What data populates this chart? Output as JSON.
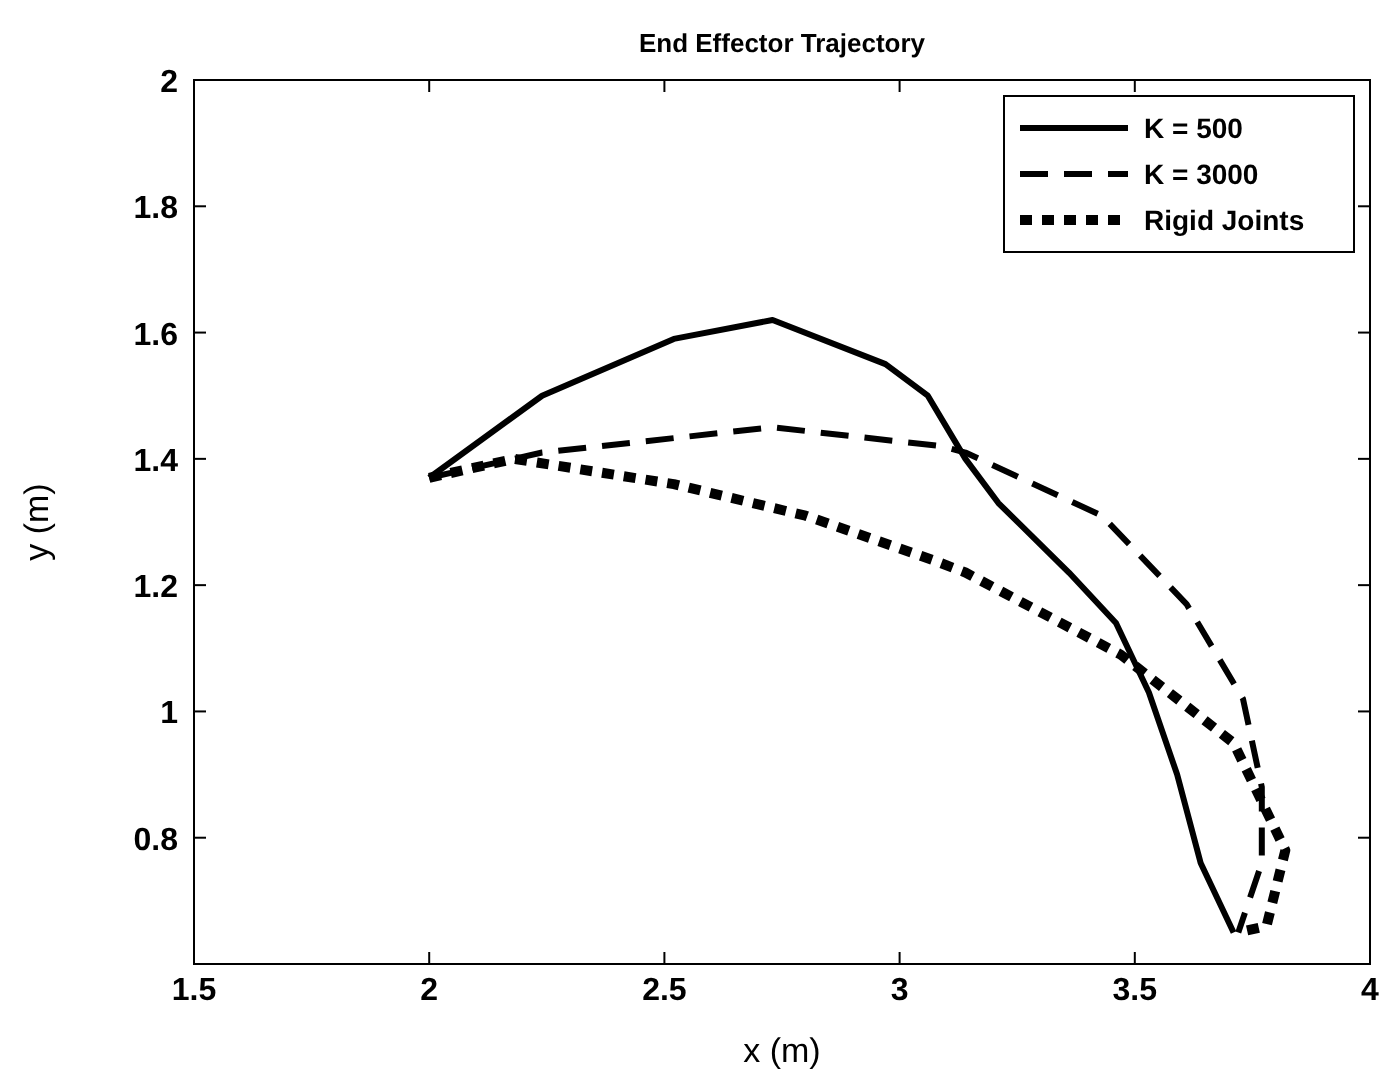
{
  "chart_data": {
    "type": "line",
    "title": "End Effector Trajectory",
    "xlabel": "x (m)",
    "ylabel": "y (m)",
    "xlim": [
      1.5,
      4
    ],
    "xticks": [
      1.5,
      2,
      2.5,
      3,
      3.5,
      4
    ],
    "ylim": [
      0.6,
      2
    ],
    "yticks": [
      {
        "value": 0.6,
        "label": null
      },
      0.8,
      1,
      1.2,
      1.4,
      1.6,
      1.8,
      2
    ],
    "grid": false,
    "legend": "top right",
    "series": [
      {
        "name": "K = 500",
        "color": "#000000",
        "line_style": "solid",
        "x": [
          2.0,
          2.24,
          2.52,
          2.73,
          2.97,
          3.06,
          3.14,
          3.21,
          3.36,
          3.46,
          3.53,
          3.59,
          3.64,
          3.71
        ],
        "values": [
          1.37,
          1.5,
          1.59,
          1.62,
          1.55,
          1.5,
          1.4,
          1.33,
          1.22,
          1.14,
          1.03,
          0.9,
          0.76,
          0.65
        ]
      },
      {
        "name": "K = 3000",
        "color": "#000000",
        "line_style": "dashed",
        "x": [
          2.0,
          2.24,
          2.73,
          3.09,
          3.14,
          3.43,
          3.61,
          3.73,
          3.77,
          3.77,
          3.72
        ],
        "values": [
          1.37,
          1.41,
          1.45,
          1.42,
          1.41,
          1.31,
          1.17,
          1.02,
          0.88,
          0.76,
          0.65
        ]
      },
      {
        "name": "Rigid Joints",
        "color": "#000000",
        "line_style": "dotted",
        "x": [
          2.0,
          2.18,
          2.52,
          2.8,
          3.07,
          3.14,
          3.47,
          3.71,
          3.82,
          3.78,
          3.72
        ],
        "values": [
          1.37,
          1.4,
          1.36,
          1.31,
          1.24,
          1.22,
          1.09,
          0.95,
          0.78,
          0.66,
          0.65
        ]
      }
    ]
  }
}
